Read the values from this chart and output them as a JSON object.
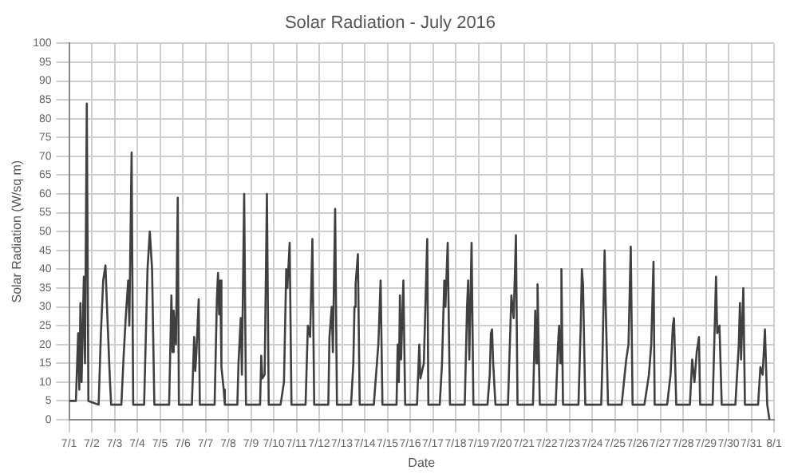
{
  "chart_data": {
    "type": "line",
    "title": "Solar Radiation - July 2016",
    "xlabel": "Date",
    "ylabel": "Solar Radiation (W/sq m)",
    "xlim": [
      "2016-07-01",
      "2016-08-01"
    ],
    "xticks": [
      {
        "value": "2016-07-01",
        "label": "7/1"
      },
      {
        "value": "2016-07-02",
        "label": "7/2"
      },
      {
        "value": "2016-07-03",
        "label": "7/3"
      },
      {
        "value": "2016-07-04",
        "label": "7/4"
      },
      {
        "value": "2016-07-05",
        "label": "7/5"
      },
      {
        "value": "2016-07-06",
        "label": "7/6"
      },
      {
        "value": "2016-07-07",
        "label": "7/7"
      },
      {
        "value": "2016-07-08",
        "label": "7/8"
      },
      {
        "value": "2016-07-09",
        "label": "7/9"
      },
      {
        "value": "2016-07-10",
        "label": "7/10"
      },
      {
        "value": "2016-07-11",
        "label": "7/11"
      },
      {
        "value": "2016-07-12",
        "label": "7/12"
      },
      {
        "value": "2016-07-13",
        "label": "7/13"
      },
      {
        "value": "2016-07-14",
        "label": "7/14"
      },
      {
        "value": "2016-07-15",
        "label": "7/15"
      },
      {
        "value": "2016-07-16",
        "label": "7/16"
      },
      {
        "value": "2016-07-17",
        "label": "7/17"
      },
      {
        "value": "2016-07-18",
        "label": "7/18"
      },
      {
        "value": "2016-07-19",
        "label": "7/19"
      },
      {
        "value": "2016-07-20",
        "label": "7/20"
      },
      {
        "value": "2016-07-21",
        "label": "7/21"
      },
      {
        "value": "2016-07-22",
        "label": "7/22"
      },
      {
        "value": "2016-07-23",
        "label": "7/23"
      },
      {
        "value": "2016-07-24",
        "label": "7/24"
      },
      {
        "value": "2016-07-25",
        "label": "7/25"
      },
      {
        "value": "2016-07-26",
        "label": "7/26"
      },
      {
        "value": "2016-07-27",
        "label": "7/27"
      },
      {
        "value": "2016-07-28",
        "label": "7/28"
      },
      {
        "value": "2016-07-29",
        "label": "7/29"
      },
      {
        "value": "2016-07-30",
        "label": "7/30"
      },
      {
        "value": "2016-07-31",
        "label": "7/31"
      },
      {
        "value": "2016-08-01",
        "label": "8/1"
      }
    ],
    "ylim": [
      0,
      100
    ],
    "yticks": [
      0,
      5,
      10,
      15,
      20,
      25,
      30,
      35,
      40,
      45,
      50,
      55,
      60,
      65,
      70,
      75,
      80,
      85,
      90,
      95,
      100
    ],
    "grid": true,
    "marker": "none",
    "line_style": "solid",
    "series": [
      {
        "color": "#404040",
        "x": [
          "2016-07-01T00:00",
          "2016-07-01T07:12",
          "2016-07-01T09:36",
          "2016-07-01T10:48",
          "2016-07-01T12:00",
          "2016-07-01T13:12",
          "2016-07-01T15:36",
          "2016-07-01T16:48",
          "2016-07-01T18:43",
          "2016-07-01T20:24",
          "2016-07-02T07:12",
          "2016-07-02T09:36",
          "2016-07-02T12:00",
          "2016-07-02T14:24",
          "2016-07-02T16:48",
          "2016-07-02T19:12",
          "2016-07-02T20:24",
          "2016-07-03T07:12",
          "2016-07-03T09:36",
          "2016-07-03T12:00",
          "2016-07-03T14:24",
          "2016-07-03T15:36",
          "2016-07-03T18:00",
          "2016-07-03T19:41",
          "2016-07-04T07:12",
          "2016-07-04T10:48",
          "2016-07-04T13:12",
          "2016-07-04T15:36",
          "2016-07-04T18:00",
          "2016-07-05T09:36",
          "2016-07-05T12:00",
          "2016-07-05T13:12",
          "2016-07-05T14:24",
          "2016-07-05T16:48",
          "2016-07-05T18:43",
          "2016-07-05T19:55",
          "2016-07-06T09:36",
          "2016-07-06T12:00",
          "2016-07-06T13:12",
          "2016-07-06T14:24",
          "2016-07-06T16:48",
          "2016-07-06T18:00",
          "2016-07-07T09:36",
          "2016-07-07T12:00",
          "2016-07-07T13:12",
          "2016-07-07T14:24",
          "2016-07-07T15:36",
          "2016-07-07T16:48",
          "2016-07-07T19:12",
          "2016-07-07T20:24",
          "2016-07-08T09:36",
          "2016-07-08T10:48",
          "2016-07-08T13:12",
          "2016-07-08T14:24",
          "2016-07-08T16:48",
          "2016-07-08T18:43",
          "2016-07-09T09:36",
          "2016-07-09T10:48",
          "2016-07-09T12:00",
          "2016-07-09T14:24",
          "2016-07-09T16:48",
          "2016-07-09T18:43",
          "2016-07-10T07:12",
          "2016-07-10T10:48",
          "2016-07-10T13:12",
          "2016-07-10T14:24",
          "2016-07-10T16:48",
          "2016-07-10T18:43",
          "2016-07-11T09:36",
          "2016-07-11T12:00",
          "2016-07-11T14:24",
          "2016-07-11T16:48",
          "2016-07-11T18:43",
          "2016-07-12T09:36",
          "2016-07-12T10:48",
          "2016-07-12T13:12",
          "2016-07-12T14:24",
          "2016-07-12T16:48",
          "2016-07-12T18:43",
          "2016-07-13T09:36",
          "2016-07-13T12:00",
          "2016-07-13T13:12",
          "2016-07-13T14:24",
          "2016-07-13T16:48",
          "2016-07-13T18:43",
          "2016-07-14T09:36",
          "2016-07-14T12:00",
          "2016-07-14T14:24",
          "2016-07-14T16:48",
          "2016-07-14T18:43",
          "2016-07-15T09:36",
          "2016-07-15T10:48",
          "2016-07-15T12:00",
          "2016-07-15T13:12",
          "2016-07-15T14:24",
          "2016-07-15T16:48",
          "2016-07-15T18:43",
          "2016-07-16T07:12",
          "2016-07-16T09:36",
          "2016-07-16T10:48",
          "2016-07-16T14:24",
          "2016-07-16T18:00",
          "2016-07-16T19:12",
          "2016-07-17T07:12",
          "2016-07-17T09:36",
          "2016-07-17T12:00",
          "2016-07-17T13:12",
          "2016-07-17T15:36",
          "2016-07-17T18:00",
          "2016-07-18T09:36",
          "2016-07-18T12:00",
          "2016-07-18T13:12",
          "2016-07-18T14:24",
          "2016-07-18T16:48",
          "2016-07-18T18:43",
          "2016-07-19T09:36",
          "2016-07-19T12:00",
          "2016-07-19T13:12",
          "2016-07-19T14:24",
          "2016-07-19T15:36",
          "2016-07-19T18:00",
          "2016-07-20T07:12",
          "2016-07-20T10:48",
          "2016-07-20T13:12",
          "2016-07-20T15:36",
          "2016-07-20T17:17",
          "2016-07-21T09:36",
          "2016-07-21T12:00",
          "2016-07-21T13:12",
          "2016-07-21T14:24",
          "2016-07-21T16:48",
          "2016-07-22T09:36",
          "2016-07-22T12:00",
          "2016-07-22T13:12",
          "2016-07-22T14:24",
          "2016-07-22T15:36",
          "2016-07-22T17:17",
          "2016-07-23T09:36",
          "2016-07-23T12:00",
          "2016-07-23T13:12",
          "2016-07-23T14:24",
          "2016-07-23T16:48",
          "2016-07-24T09:36",
          "2016-07-24T10:48",
          "2016-07-24T13:12",
          "2016-07-24T14:24",
          "2016-07-24T16:48",
          "2016-07-25T07:12",
          "2016-07-25T09:36",
          "2016-07-25T12:00",
          "2016-07-25T14:24",
          "2016-07-25T16:48",
          "2016-07-25T18:43",
          "2016-07-26T07:12",
          "2016-07-26T12:00",
          "2016-07-26T14:24",
          "2016-07-26T16:48",
          "2016-07-26T18:00",
          "2016-07-27T07:12",
          "2016-07-27T10:48",
          "2016-07-27T13:12",
          "2016-07-27T14:24",
          "2016-07-27T16:48",
          "2016-07-28T07:12",
          "2016-07-28T09:36",
          "2016-07-28T12:00",
          "2016-07-28T14:24",
          "2016-07-28T16:48",
          "2016-07-28T18:00",
          "2016-07-29T07:12",
          "2016-07-29T10:48",
          "2016-07-29T12:00",
          "2016-07-29T14:24",
          "2016-07-29T16:48",
          "2016-07-30T07:12",
          "2016-07-30T10:48",
          "2016-07-30T12:00",
          "2016-07-30T13:12",
          "2016-07-30T15:36",
          "2016-07-30T17:17",
          "2016-07-31T07:12",
          "2016-07-31T09:36",
          "2016-07-31T12:00",
          "2016-07-31T14:24",
          "2016-07-31T16:48",
          "2016-07-31T19:12"
        ],
        "values": [
          5,
          5,
          23,
          8,
          31,
          10,
          38,
          15,
          84,
          5,
          4,
          23,
          37,
          41,
          25,
          10,
          4,
          4,
          17,
          28,
          37,
          25,
          71,
          4,
          4,
          40,
          50,
          40,
          4,
          4,
          33,
          18,
          29,
          20,
          59,
          4,
          4,
          22,
          13,
          18,
          32,
          4,
          4,
          32,
          39,
          28,
          37,
          14,
          8,
          4,
          4,
          15,
          27,
          12,
          60,
          4,
          4,
          17,
          11,
          12,
          60,
          4,
          4,
          10,
          40,
          35,
          47,
          4,
          4,
          25,
          22,
          48,
          4,
          4,
          22,
          30,
          18,
          56,
          4,
          4,
          15,
          30,
          36,
          44,
          4,
          4,
          12,
          20,
          37,
          4,
          4,
          20,
          10,
          33,
          16,
          37,
          4,
          4,
          20,
          11,
          15,
          48,
          4,
          4,
          15,
          37,
          30,
          47,
          4,
          4,
          30,
          37,
          16,
          47,
          4,
          4,
          12,
          23,
          24,
          15,
          4,
          4,
          33,
          27,
          49,
          4,
          4,
          29,
          15,
          36,
          4,
          4,
          20,
          25,
          15,
          40,
          4,
          4,
          25,
          40,
          36,
          4,
          4,
          15,
          45,
          30,
          4,
          4,
          10,
          16,
          20,
          46,
          4,
          4,
          12,
          20,
          42,
          4,
          4,
          12,
          25,
          27,
          4,
          4,
          16,
          10,
          18,
          22,
          4,
          4,
          38,
          23,
          25,
          4,
          4,
          20,
          31,
          16,
          35,
          4,
          4,
          14,
          12,
          24,
          4,
          0
        ]
      }
    ]
  }
}
